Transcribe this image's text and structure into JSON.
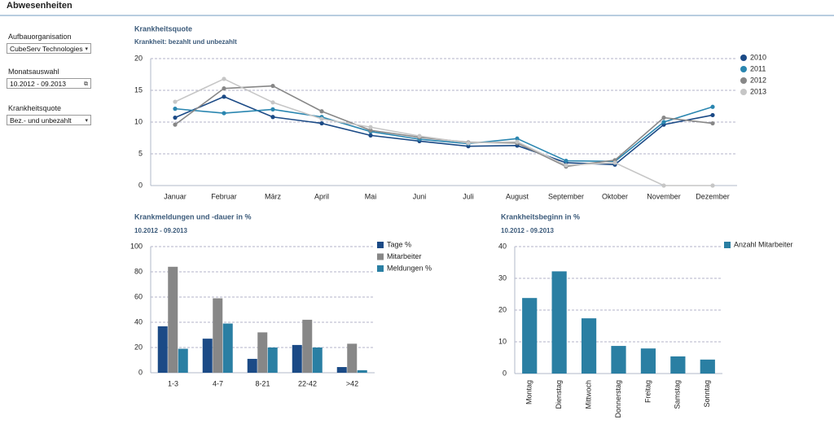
{
  "header": {
    "title": "Abwesenheiten"
  },
  "filters": [
    {
      "label": "Aufbauorganisation",
      "value": "CubeServ Technologies",
      "control": "dropdown"
    },
    {
      "label": "Monatsauswahl",
      "value": "10.2012 - 09.2013",
      "control": "calendar"
    },
    {
      "label": "Krankheitsquote",
      "value": "Bez.- und unbezahlt",
      "control": "dropdown"
    }
  ],
  "chart_data": [
    {
      "type": "line",
      "title": "Krankheitsquote",
      "subtitle": "Krankheit: bezahlt und unbezahlt",
      "categories": [
        "Januar",
        "Februar",
        "März",
        "April",
        "Mai",
        "Juni",
        "Juli",
        "August",
        "September",
        "Oktober",
        "November",
        "Dezember"
      ],
      "series": [
        {
          "name": "2010",
          "color": "#1b4a86",
          "values": [
            10.7,
            14.0,
            10.8,
            9.8,
            7.9,
            7.0,
            6.2,
            6.3,
            3.6,
            3.3,
            9.6,
            11.1
          ]
        },
        {
          "name": "2011",
          "color": "#2a86b0",
          "values": [
            12.1,
            11.4,
            12.0,
            10.8,
            8.5,
            7.3,
            6.6,
            7.4,
            3.9,
            3.8,
            10.0,
            12.4
          ]
        },
        {
          "name": "2012",
          "color": "#878787",
          "values": [
            9.6,
            15.3,
            15.7,
            11.7,
            8.7,
            7.6,
            6.8,
            6.7,
            3.0,
            4.0,
            10.7,
            9.8
          ]
        },
        {
          "name": "2013",
          "color": "#c6c6c6",
          "values": [
            13.2,
            16.8,
            13.1,
            10.5,
            9.2,
            7.8,
            6.7,
            6.9,
            3.2,
            3.6,
            0,
            0
          ]
        }
      ],
      "ylim": [
        0,
        20
      ],
      "yticks": [
        0,
        5,
        10,
        15,
        20
      ],
      "grid": true,
      "legend": "right"
    },
    {
      "type": "bar",
      "title": "Krankmeldungen und -dauer in %",
      "subtitle": "10.2012 - 09.2013",
      "categories": [
        "1-3",
        "4-7",
        "8-21",
        "22-42",
        ">42"
      ],
      "series": [
        {
          "name": "Tage %",
          "color": "#1b4a86",
          "values": [
            36.8,
            27,
            11,
            22,
            4.5
          ]
        },
        {
          "name": "Mitarbeiter",
          "color": "#878787",
          "values": [
            84,
            59,
            32,
            42,
            23
          ]
        },
        {
          "name": "Meldungen %",
          "color": "#2a7fa3",
          "values": [
            19,
            39,
            20,
            20,
            2
          ]
        }
      ],
      "ylim": [
        0,
        100
      ],
      "yticks": [
        0,
        20,
        40,
        60,
        80,
        100
      ],
      "grid": true,
      "legend": "right"
    },
    {
      "type": "bar",
      "title": "Krankheitsbeginn in %",
      "subtitle": "10.2012 - 09.2013",
      "categories": [
        "Montag",
        "Dienstag",
        "Mittwoch",
        "Donnerstag",
        "Freitag",
        "Samstag",
        "Sonntag"
      ],
      "series": [
        {
          "name": "Anzahl Mitarbeiter",
          "color": "#2a7fa3",
          "values": [
            23.8,
            32.2,
            17.4,
            8.7,
            7.9,
            5.4,
            4.4
          ]
        }
      ],
      "ylim": [
        0,
        40
      ],
      "yticks": [
        0,
        10,
        20,
        30,
        40
      ],
      "grid": true,
      "legend": "right",
      "rotate_labels": true
    }
  ]
}
